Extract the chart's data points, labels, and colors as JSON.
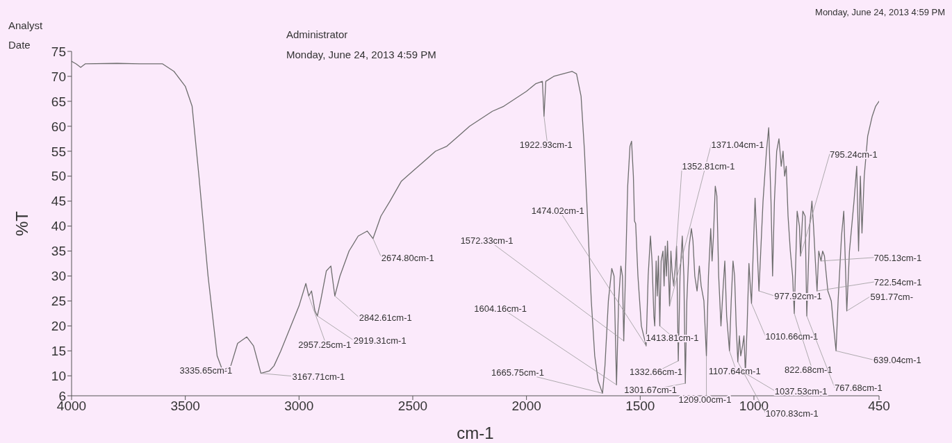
{
  "chart_data": {
    "type": "line",
    "xlabel": "cm-1",
    "ylabel": "%T",
    "xlim": [
      4000,
      450
    ],
    "xticks": [
      4000,
      3500,
      3000,
      2500,
      2000,
      1500,
      1000,
      450
    ],
    "ylim": [
      6,
      75
    ],
    "yticks": [
      6,
      10,
      15,
      20,
      25,
      30,
      35,
      40,
      45,
      50,
      55,
      60,
      65,
      70,
      75
    ],
    "marker": "none",
    "line_style": "solid",
    "series": [
      {
        "color": "#6e6e6e",
        "x": [
          4000,
          3980,
          3960,
          3940,
          3800,
          3700,
          3600,
          3550,
          3500,
          3470,
          3440,
          3400,
          3360,
          3335.65,
          3300,
          3270,
          3230,
          3200,
          3167.71,
          3130,
          3110,
          3080,
          3000,
          2970,
          2957.25,
          2945,
          2930,
          2919.31,
          2905,
          2880,
          2860,
          2842.61,
          2820,
          2780,
          2740,
          2700,
          2674.8,
          2640,
          2600,
          2550,
          2500,
          2450,
          2400,
          2350,
          2300,
          2250,
          2200,
          2150,
          2100,
          2050,
          2000,
          1960,
          1930,
          1922.93,
          1915,
          1880,
          1840,
          1800,
          1780,
          1760,
          1745,
          1730,
          1715,
          1700,
          1685,
          1665.75,
          1655,
          1640,
          1625,
          1615,
          1604.16,
          1595,
          1585,
          1578,
          1572.33,
          1565,
          1555,
          1545,
          1538,
          1530,
          1525,
          1520,
          1510,
          1495,
          1474.02,
          1465,
          1455,
          1448,
          1440,
          1436,
          1430,
          1425,
          1420,
          1413.81,
          1408,
          1400,
          1395,
          1390,
          1385,
          1380,
          1375,
          1371.04,
          1365,
          1360,
          1352.81,
          1345,
          1340,
          1332.66,
          1325,
          1315,
          1308,
          1301.67,
          1295,
          1285,
          1275,
          1268,
          1260,
          1250,
          1240,
          1232,
          1220,
          1209,
          1200,
          1190,
          1184,
          1178,
          1170,
          1163,
          1155,
          1145,
          1135,
          1128,
          1120,
          1107.64,
          1100,
          1092,
          1085,
          1078,
          1070.83,
          1064,
          1058,
          1050,
          1044,
          1037.53,
          1030,
          1022,
          1016,
          1010.66,
          1003,
          995,
          988,
          977.92,
          970,
          960,
          945,
          935,
          925,
          918,
          910,
          900,
          890,
          880,
          872,
          865,
          858,
          850,
          840,
          830,
          822.68,
          810,
          800,
          795.24,
          785,
          775,
          767.68,
          755,
          745,
          738,
          730,
          722.54,
          715,
          705.13,
          698,
          690,
          675,
          660,
          650,
          639.04,
          630,
          615,
          605,
          591.77,
          580,
          560,
          548,
          540,
          532,
          525,
          515,
          500,
          480,
          465,
          450
        ],
        "values": [
          73,
          72.5,
          71.8,
          72.5,
          72.6,
          72.5,
          72.5,
          71,
          68,
          64,
          50,
          30,
          14,
          11,
          12,
          16.5,
          17.8,
          16,
          10.5,
          11,
          12,
          15,
          24,
          28.5,
          26,
          27,
          23,
          22,
          25,
          31,
          32,
          26,
          30,
          35,
          38,
          39,
          37.5,
          42,
          45,
          49,
          51,
          53,
          55,
          56,
          58,
          60,
          61.5,
          63,
          64,
          65.5,
          67,
          68.5,
          69,
          62,
          69,
          70,
          70.5,
          71,
          70.5,
          66,
          55,
          40,
          25,
          14,
          9,
          6.5,
          12,
          25,
          31.5,
          30,
          8.2,
          25,
          32,
          30,
          17,
          30,
          48,
          56,
          57,
          50,
          41,
          40.5,
          30,
          20,
          16,
          30,
          38,
          33,
          22,
          20,
          33,
          26,
          34,
          20,
          33,
          35,
          28,
          36,
          30,
          37,
          30,
          24,
          35,
          31,
          28,
          32,
          36,
          13,
          30,
          38,
          30,
          8.5,
          25,
          36,
          39.5,
          37,
          30,
          27,
          32,
          28,
          25,
          14,
          30,
          39.5,
          33,
          38,
          48,
          46,
          30,
          20,
          28,
          33,
          22,
          15,
          25,
          33,
          30,
          20,
          12.8,
          18,
          14,
          16,
          18,
          10.5,
          20,
          32.5,
          28,
          24.5,
          35,
          45.6,
          38,
          27,
          35,
          45,
          55,
          59.7,
          45,
          30,
          45,
          55,
          57.5,
          52,
          55,
          50,
          52,
          42,
          35,
          30,
          22.5,
          43,
          40,
          34,
          43,
          42,
          22,
          40,
          45,
          40,
          33,
          27,
          35,
          33,
          35,
          34,
          27,
          25,
          20,
          15,
          25,
          38,
          43,
          23,
          35,
          45,
          52,
          35,
          50,
          38.6,
          50,
          58,
          62,
          64,
          65
        ]
      }
    ],
    "annotations": [
      "Analyst",
      "Date",
      "Administrator",
      "Monday, June 24, 2013 4:59 PM",
      "Monday, June 24, 2013 4:59 PM",
      {
        "text": "3335.65cm-1",
        "x": 3335.65,
        "y": 11
      },
      {
        "text": "3167.71cm-1",
        "x": 3167.71,
        "y": 10.5
      },
      {
        "text": "2957.25cm-1",
        "x": 2957.25,
        "y": 26
      },
      {
        "text": "2919.31cm-1",
        "x": 2919.31,
        "y": 22
      },
      {
        "text": "2842.61cm-1",
        "x": 2842.61,
        "y": 26
      },
      {
        "text": "2674.80cm-1",
        "x": 2674.8,
        "y": 37.5
      },
      {
        "text": "1922.93cm-1",
        "x": 1922.93,
        "y": 62
      },
      {
        "text": "1665.75cm-1",
        "x": 1665.75,
        "y": 6.5
      },
      {
        "text": "1604.16cm-1",
        "x": 1604.16,
        "y": 8.2
      },
      {
        "text": "1572.33cm-1",
        "x": 1572.33,
        "y": 17
      },
      {
        "text": "1474.02cm-1",
        "x": 1474.02,
        "y": 16
      },
      {
        "text": "1413.81cm-1",
        "x": 1413.81,
        "y": 20
      },
      {
        "text": "1371.04cm-1",
        "x": 1371.04,
        "y": 24
      },
      {
        "text": "1352.81cm-1",
        "x": 1352.81,
        "y": 28
      },
      {
        "text": "1332.66cm-1",
        "x": 1332.66,
        "y": 13
      },
      {
        "text": "1301.67cm-1",
        "x": 1301.67,
        "y": 8.5
      },
      {
        "text": "1209.00cm-1",
        "x": 1209,
        "y": 14
      },
      {
        "text": "1107.64cm-1",
        "x": 1107.64,
        "y": 15
      },
      {
        "text": "1070.83cm-1",
        "x": 1070.83,
        "y": 12.8
      },
      {
        "text": "1037.53cm-1",
        "x": 1037.53,
        "y": 10.5
      },
      {
        "text": "1010.66cm-1",
        "x": 1010.66,
        "y": 24.5
      },
      {
        "text": "977.92cm-1",
        "x": 977.92,
        "y": 27
      },
      {
        "text": "822.68cm-1",
        "x": 822.68,
        "y": 22.5
      },
      {
        "text": "795.24cm-1",
        "x": 795.24,
        "y": 34
      },
      {
        "text": "767.68cm-1",
        "x": 767.68,
        "y": 22
      },
      {
        "text": "722.54cm-1",
        "x": 722.54,
        "y": 27
      },
      {
        "text": "705.13cm-1",
        "x": 705.13,
        "y": 33
      },
      {
        "text": "639.04cm-1",
        "x": 639.04,
        "y": 15
      },
      {
        "text": "591.77cm-",
        "x": 591.77,
        "y": 23
      }
    ]
  }
}
